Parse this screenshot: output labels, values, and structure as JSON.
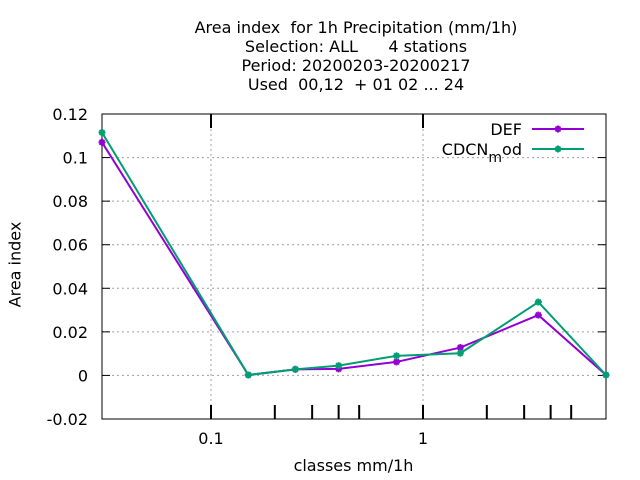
{
  "chart_data": {
    "type": "line",
    "title_lines": [
      "Area index  for 1h Precipitation (mm/1h)",
      "Selection: ALL      4 stations",
      "Period: 20200203-20200217",
      "Used  00,12  + 01 02 ... 24"
    ],
    "xlabel": "classes mm/1h",
    "ylabel": "Area index",
    "x_scale": "log",
    "x_major_ticks": [
      0.1,
      1
    ],
    "x_minor_ticks": [
      0.2,
      0.3,
      0.4,
      0.5,
      2,
      3,
      4,
      5
    ],
    "ylim": [
      -0.02,
      0.12
    ],
    "y_ticks": [
      -0.02,
      0,
      0.02,
      0.04,
      0.06,
      0.08,
      0.1,
      0.12
    ],
    "grid": true,
    "legend_position": "top-right",
    "x": [
      0.03,
      0.15,
      0.25,
      0.4,
      0.75,
      1.5,
      3.5,
      8.0
    ],
    "series": [
      {
        "name": "DEF",
        "label_main": "DEF",
        "label_sub": "",
        "label_tail": "",
        "color": "#9400d3",
        "values": [
          0.107,
          0.0002,
          0.0028,
          0.003,
          0.0062,
          0.0128,
          0.0277,
          0.0002
        ]
      },
      {
        "name": "CDCN_mod",
        "label_main": "CDCN",
        "label_sub": "m",
        "label_tail": "od",
        "color": "#009e73",
        "values": [
          0.1115,
          0.0002,
          0.0028,
          0.0045,
          0.009,
          0.0102,
          0.0337,
          0.0002
        ]
      }
    ]
  }
}
